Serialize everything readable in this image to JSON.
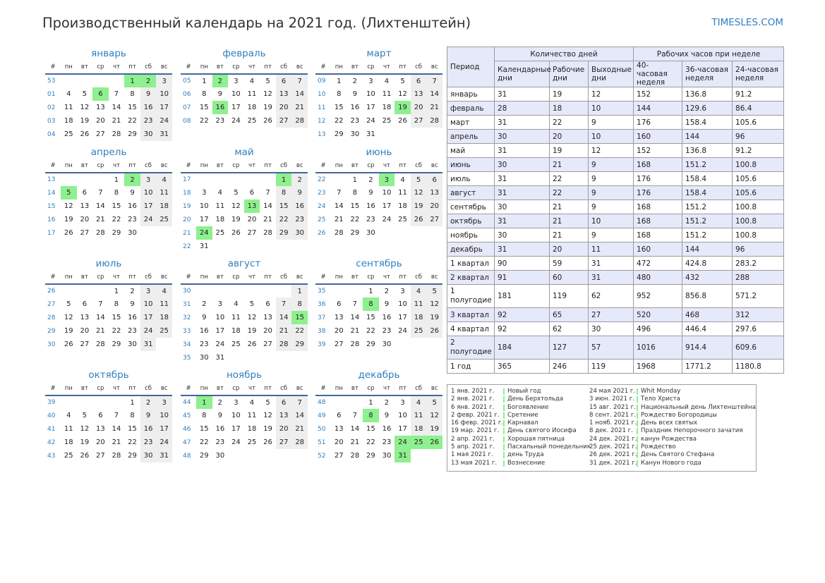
{
  "header": {
    "title": "Производственный календарь на 2021 год. (Лихтенштейн)",
    "site": "TIMESLES.COM"
  },
  "weekday_header": [
    "#",
    "пн",
    "вт",
    "ср",
    "чт",
    "пт",
    "сб",
    "вс"
  ],
  "months": [
    {
      "name": "январь",
      "weeks": [
        {
          "wk": "53",
          "days": [
            "",
            "",
            "",
            "",
            {
              "d": "1",
              "h": 1
            },
            {
              "d": "2",
              "h": 1
            },
            "3"
          ]
        },
        {
          "wk": "01",
          "days": [
            "4",
            "5",
            {
              "d": "6",
              "h": 1
            },
            "7",
            "8",
            "9",
            "10"
          ]
        },
        {
          "wk": "02",
          "days": [
            "11",
            "12",
            "13",
            "14",
            "15",
            "16",
            "17"
          ]
        },
        {
          "wk": "03",
          "days": [
            "18",
            "19",
            "20",
            "21",
            "22",
            "23",
            "24"
          ]
        },
        {
          "wk": "04",
          "days": [
            "25",
            "26",
            "27",
            "28",
            "29",
            "30",
            "31"
          ]
        }
      ]
    },
    {
      "name": "февраль",
      "weeks": [
        {
          "wk": "05",
          "days": [
            "1",
            {
              "d": "2",
              "h": 1
            },
            "3",
            "4",
            "5",
            "6",
            "7"
          ]
        },
        {
          "wk": "06",
          "days": [
            "8",
            "9",
            "10",
            "11",
            "12",
            "13",
            "14"
          ]
        },
        {
          "wk": "07",
          "days": [
            "15",
            {
              "d": "16",
              "h": 1
            },
            "17",
            "18",
            "19",
            "20",
            "21"
          ]
        },
        {
          "wk": "08",
          "days": [
            "22",
            "23",
            "24",
            "25",
            "26",
            "27",
            "28"
          ]
        }
      ]
    },
    {
      "name": "март",
      "weeks": [
        {
          "wk": "09",
          "days": [
            "1",
            "2",
            "3",
            "4",
            "5",
            "6",
            "7"
          ]
        },
        {
          "wk": "10",
          "days": [
            "8",
            "9",
            "10",
            "11",
            "12",
            "13",
            "14"
          ]
        },
        {
          "wk": "11",
          "days": [
            "15",
            "16",
            "17",
            "18",
            {
              "d": "19",
              "h": 1
            },
            "20",
            "21"
          ]
        },
        {
          "wk": "12",
          "days": [
            "22",
            "23",
            "24",
            "25",
            "26",
            "27",
            "28"
          ]
        },
        {
          "wk": "13",
          "days": [
            "29",
            "30",
            "31",
            "",
            "",
            "",
            ""
          ]
        }
      ]
    },
    {
      "name": "апрель",
      "weeks": [
        {
          "wk": "13",
          "days": [
            "",
            "",
            "",
            "1",
            {
              "d": "2",
              "h": 1
            },
            "3",
            "4"
          ]
        },
        {
          "wk": "14",
          "days": [
            {
              "d": "5",
              "h": 1
            },
            "6",
            "7",
            "8",
            "9",
            "10",
            "11"
          ]
        },
        {
          "wk": "15",
          "days": [
            "12",
            "13",
            "14",
            "15",
            "16",
            "17",
            "18"
          ]
        },
        {
          "wk": "16",
          "days": [
            "19",
            "20",
            "21",
            "22",
            "23",
            "24",
            "25"
          ]
        },
        {
          "wk": "17",
          "days": [
            "26",
            "27",
            "28",
            "29",
            "30",
            "",
            ""
          ]
        }
      ]
    },
    {
      "name": "май",
      "weeks": [
        {
          "wk": "17",
          "days": [
            "",
            "",
            "",
            "",
            "",
            {
              "d": "1",
              "h": 1
            },
            "2"
          ]
        },
        {
          "wk": "18",
          "days": [
            "3",
            "4",
            "5",
            "6",
            "7",
            "8",
            "9"
          ]
        },
        {
          "wk": "19",
          "days": [
            "10",
            "11",
            "12",
            {
              "d": "13",
              "h": 1
            },
            "14",
            "15",
            "16"
          ]
        },
        {
          "wk": "20",
          "days": [
            "17",
            "18",
            "19",
            "20",
            "21",
            "22",
            "23"
          ]
        },
        {
          "wk": "21",
          "days": [
            {
              "d": "24",
              "h": 1
            },
            "25",
            "26",
            "27",
            "28",
            "29",
            "30"
          ]
        },
        {
          "wk": "22",
          "days": [
            "31",
            "",
            "",
            "",
            "",
            "",
            ""
          ]
        }
      ]
    },
    {
      "name": "июнь",
      "weeks": [
        {
          "wk": "22",
          "days": [
            "",
            "1",
            "2",
            {
              "d": "3",
              "h": 1
            },
            "4",
            "5",
            "6"
          ]
        },
        {
          "wk": "23",
          "days": [
            "7",
            "8",
            "9",
            "10",
            "11",
            "12",
            "13"
          ]
        },
        {
          "wk": "24",
          "days": [
            "14",
            "15",
            "16",
            "17",
            "18",
            "19",
            "20"
          ]
        },
        {
          "wk": "25",
          "days": [
            "21",
            "22",
            "23",
            "24",
            "25",
            "26",
            "27"
          ]
        },
        {
          "wk": "26",
          "days": [
            "28",
            "29",
            "30",
            "",
            "",
            "",
            ""
          ]
        }
      ]
    },
    {
      "name": "июль",
      "weeks": [
        {
          "wk": "26",
          "days": [
            "",
            "",
            "",
            "1",
            "2",
            "3",
            "4"
          ]
        },
        {
          "wk": "27",
          "days": [
            "5",
            "6",
            "7",
            "8",
            "9",
            "10",
            "11"
          ]
        },
        {
          "wk": "28",
          "days": [
            "12",
            "13",
            "14",
            "15",
            "16",
            "17",
            "18"
          ]
        },
        {
          "wk": "29",
          "days": [
            "19",
            "20",
            "21",
            "22",
            "23",
            "24",
            "25"
          ]
        },
        {
          "wk": "30",
          "days": [
            "26",
            "27",
            "28",
            "29",
            "30",
            "31",
            ""
          ]
        }
      ]
    },
    {
      "name": "август",
      "weeks": [
        {
          "wk": "30",
          "days": [
            "",
            "",
            "",
            "",
            "",
            "",
            "1"
          ]
        },
        {
          "wk": "31",
          "days": [
            "2",
            "3",
            "4",
            "5",
            "6",
            "7",
            "8"
          ]
        },
        {
          "wk": "32",
          "days": [
            "9",
            "10",
            "11",
            "12",
            "13",
            "14",
            {
              "d": "15",
              "h": 1
            }
          ]
        },
        {
          "wk": "33",
          "days": [
            "16",
            "17",
            "18",
            "19",
            "20",
            "21",
            "22"
          ]
        },
        {
          "wk": "34",
          "days": [
            "23",
            "24",
            "25",
            "26",
            "27",
            "28",
            "29"
          ]
        },
        {
          "wk": "35",
          "days": [
            "30",
            "31",
            "",
            "",
            "",
            "",
            ""
          ]
        }
      ]
    },
    {
      "name": "сентябрь",
      "weeks": [
        {
          "wk": "35",
          "days": [
            "",
            "",
            "1",
            "2",
            "3",
            "4",
            "5"
          ]
        },
        {
          "wk": "36",
          "days": [
            "6",
            "7",
            {
              "d": "8",
              "h": 1
            },
            "9",
            "10",
            "11",
            "12"
          ]
        },
        {
          "wk": "37",
          "days": [
            "13",
            "14",
            "15",
            "16",
            "17",
            "18",
            "19"
          ]
        },
        {
          "wk": "38",
          "days": [
            "20",
            "21",
            "22",
            "23",
            "24",
            "25",
            "26"
          ]
        },
        {
          "wk": "39",
          "days": [
            "27",
            "28",
            "29",
            "30",
            "",
            "",
            ""
          ]
        }
      ]
    },
    {
      "name": "октябрь",
      "weeks": [
        {
          "wk": "39",
          "days": [
            "",
            "",
            "",
            "",
            "1",
            "2",
            "3"
          ]
        },
        {
          "wk": "40",
          "days": [
            "4",
            "5",
            "6",
            "7",
            "8",
            "9",
            "10"
          ]
        },
        {
          "wk": "41",
          "days": [
            "11",
            "12",
            "13",
            "14",
            "15",
            "16",
            "17"
          ]
        },
        {
          "wk": "42",
          "days": [
            "18",
            "19",
            "20",
            "21",
            "22",
            "23",
            "24"
          ]
        },
        {
          "wk": "43",
          "days": [
            "25",
            "26",
            "27",
            "28",
            "29",
            "30",
            "31"
          ]
        }
      ]
    },
    {
      "name": "ноябрь",
      "weeks": [
        {
          "wk": "44",
          "days": [
            {
              "d": "1",
              "h": 1
            },
            "2",
            "3",
            "4",
            "5",
            "6",
            "7"
          ]
        },
        {
          "wk": "45",
          "days": [
            "8",
            "9",
            "10",
            "11",
            "12",
            "13",
            "14"
          ]
        },
        {
          "wk": "46",
          "days": [
            "15",
            "16",
            "17",
            "18",
            "19",
            "20",
            "21"
          ]
        },
        {
          "wk": "47",
          "days": [
            "22",
            "23",
            "24",
            "25",
            "26",
            "27",
            "28"
          ]
        },
        {
          "wk": "48",
          "days": [
            "29",
            "30",
            "",
            "",
            "",
            "",
            ""
          ]
        }
      ]
    },
    {
      "name": "декабрь",
      "weeks": [
        {
          "wk": "48",
          "days": [
            "",
            "",
            "1",
            "2",
            "3",
            "4",
            "5"
          ]
        },
        {
          "wk": "49",
          "days": [
            "6",
            "7",
            {
              "d": "8",
              "h": 1
            },
            "9",
            "10",
            "11",
            "12"
          ]
        },
        {
          "wk": "50",
          "days": [
            "13",
            "14",
            "15",
            "16",
            "17",
            "18",
            "19"
          ]
        },
        {
          "wk": "51",
          "days": [
            "20",
            "21",
            "22",
            "23",
            {
              "d": "24",
              "h": 1
            },
            {
              "d": "25",
              "h": 1
            },
            {
              "d": "26",
              "h": 1
            }
          ]
        },
        {
          "wk": "52",
          "days": [
            "27",
            "28",
            "29",
            "30",
            {
              "d": "31",
              "h": 1
            },
            "",
            ""
          ]
        }
      ]
    }
  ],
  "stats": {
    "head": {
      "period": "Период",
      "days_group": "Количество дней",
      "hours_group": "Рабочих часов при неделе",
      "cols": [
        "Календарные дни",
        "Рабочие дни",
        "Выходные дни",
        "40-часовая неделя",
        "36-часовая неделя",
        "24-часовая неделя"
      ]
    },
    "rows": [
      [
        "январь",
        "31",
        "19",
        "12",
        "152",
        "136.8",
        "91.2"
      ],
      [
        "февраль",
        "28",
        "18",
        "10",
        "144",
        "129.6",
        "86.4"
      ],
      [
        "март",
        "31",
        "22",
        "9",
        "176",
        "158.4",
        "105.6"
      ],
      [
        "апрель",
        "30",
        "20",
        "10",
        "160",
        "144",
        "96"
      ],
      [
        "май",
        "31",
        "19",
        "12",
        "152",
        "136.8",
        "91.2"
      ],
      [
        "июнь",
        "30",
        "21",
        "9",
        "168",
        "151.2",
        "100.8"
      ],
      [
        "июль",
        "31",
        "22",
        "9",
        "176",
        "158.4",
        "105.6"
      ],
      [
        "август",
        "31",
        "22",
        "9",
        "176",
        "158.4",
        "105.6"
      ],
      [
        "сентябрь",
        "30",
        "21",
        "9",
        "168",
        "151.2",
        "100.8"
      ],
      [
        "октябрь",
        "31",
        "21",
        "10",
        "168",
        "151.2",
        "100.8"
      ],
      [
        "ноябрь",
        "30",
        "21",
        "9",
        "168",
        "151.2",
        "100.8"
      ],
      [
        "декабрь",
        "31",
        "20",
        "11",
        "160",
        "144",
        "96"
      ],
      [
        "1 квартал",
        "90",
        "59",
        "31",
        "472",
        "424.8",
        "283.2"
      ],
      [
        "2 квартал",
        "91",
        "60",
        "31",
        "480",
        "432",
        "288"
      ],
      [
        "1 полугодие",
        "181",
        "119",
        "62",
        "952",
        "856.8",
        "571.2"
      ],
      [
        "3 квартал",
        "92",
        "65",
        "27",
        "520",
        "468",
        "312"
      ],
      [
        "4 квартал",
        "92",
        "62",
        "30",
        "496",
        "446.4",
        "297.6"
      ],
      [
        "2 полугодие",
        "184",
        "127",
        "57",
        "1016",
        "914.4",
        "609.6"
      ],
      [
        "1 год",
        "365",
        "246",
        "119",
        "1968",
        "1771.2",
        "1180.8"
      ]
    ]
  },
  "holidays": {
    "left": [
      {
        "date": "1 янв. 2021 г.",
        "name": "Новый год"
      },
      {
        "date": "2 янв. 2021 г.",
        "name": "День Берхтольда"
      },
      {
        "date": "6 янв. 2021 г.",
        "name": "Богоявление"
      },
      {
        "date": "2 февр. 2021 г.",
        "name": "Сретение"
      },
      {
        "date": "16 февр. 2021 г.",
        "name": "Карнавал"
      },
      {
        "date": "19 мар. 2021 г.",
        "name": "День святого Иосифа"
      },
      {
        "date": "2 апр. 2021 г.",
        "name": "Хорошая пятница"
      },
      {
        "date": "5 апр. 2021 г.",
        "name": "Пасхальный понедельник"
      },
      {
        "date": "1 мая 2021 г.",
        "name": "день Труда"
      },
      {
        "date": "13 мая 2021 г.",
        "name": "Вознесение"
      }
    ],
    "right": [
      {
        "date": "24 мая 2021 г.",
        "name": "Whit Monday"
      },
      {
        "date": "3 июн. 2021 г.",
        "name": "Тело Христа"
      },
      {
        "date": "15 авг. 2021 г.",
        "name": "Национальный день Лихтенштейна"
      },
      {
        "date": "8 сент. 2021 г.",
        "name": "Рождество Богородицы"
      },
      {
        "date": "1 нояб. 2021 г.",
        "name": "День всех святых"
      },
      {
        "date": "8 дек. 2021 г.",
        "name": "Праздник Непорочного зачатия"
      },
      {
        "date": "24 дек. 2021 г.",
        "name": "канун Рождества"
      },
      {
        "date": "25 дек. 2021 г.",
        "name": "Рождество"
      },
      {
        "date": "26 дек. 2021 г.",
        "name": "День Святого Стефана"
      },
      {
        "date": "31 дек. 2021 г.",
        "name": "Канун Нового года"
      }
    ]
  },
  "colors": {
    "accent": "#2f7fc1",
    "holiday": "#8ef08e",
    "weekend": "#eeeeee",
    "table_stripe": "#e6e9fa",
    "rule": "#44679a"
  }
}
